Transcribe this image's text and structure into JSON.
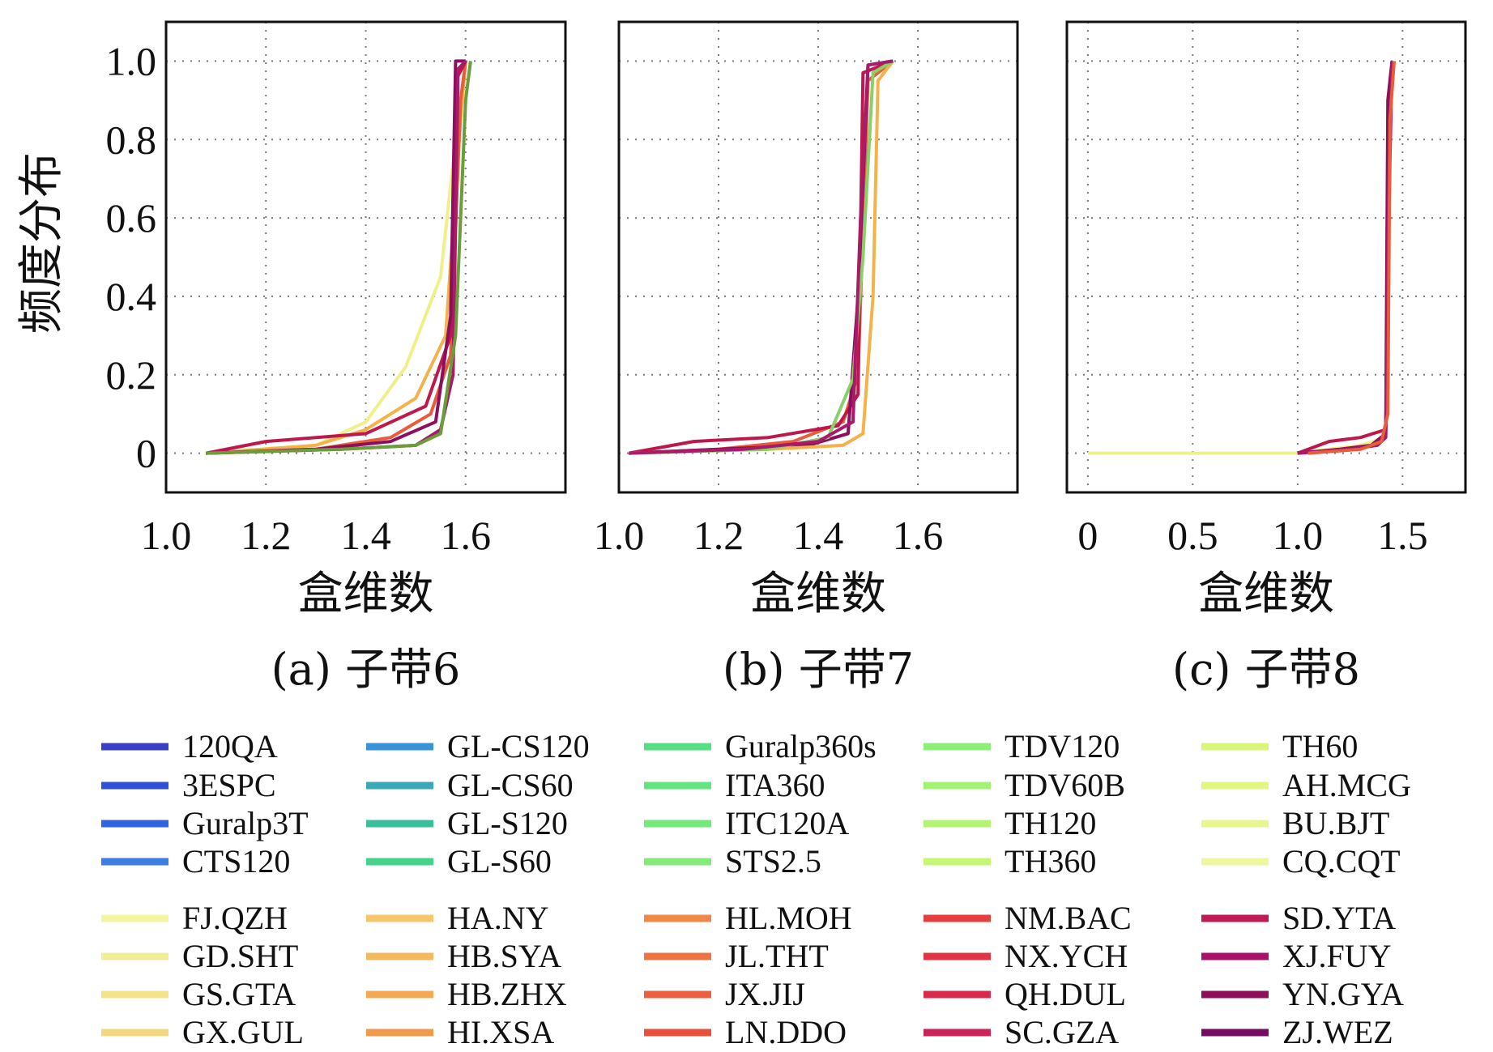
{
  "chart_data": [
    {
      "type": "line",
      "panel_caption": "(a) 子带6",
      "xlabel": "盒维数",
      "ylabel": "频度分布",
      "xlim": [
        1.0,
        1.8
      ],
      "ylim": [
        -0.1,
        1.1
      ],
      "xticks": [
        1.0,
        1.2,
        1.4,
        1.6
      ],
      "xtick_labels": [
        "1.0",
        "1.2",
        "1.4",
        "1.6"
      ],
      "yticks": [
        0,
        0.2,
        0.4,
        0.6,
        0.8,
        1.0
      ],
      "ytick_labels": [
        "0",
        "0.2",
        "0.4",
        "0.6",
        "0.8",
        "1.0"
      ],
      "grid": true,
      "series_note": "40 cumulative frequency curves (one per instrument/station, see legend)",
      "representative_curves": [
        {
          "color": "#f0f08a",
          "x": [
            1.08,
            1.3,
            1.4,
            1.48,
            1.55,
            1.58,
            1.6
          ],
          "y": [
            0,
            0.02,
            0.08,
            0.22,
            0.45,
            0.8,
            1.0
          ]
        },
        {
          "color": "#f4b24a",
          "x": [
            1.08,
            1.3,
            1.4,
            1.5,
            1.56,
            1.59,
            1.6
          ],
          "y": [
            0,
            0.02,
            0.06,
            0.14,
            0.3,
            0.85,
            1.0
          ]
        },
        {
          "color": "#e85c3a",
          "x": [
            1.08,
            1.3,
            1.45,
            1.53,
            1.57,
            1.59,
            1.6
          ],
          "y": [
            0,
            0.01,
            0.04,
            0.1,
            0.25,
            0.9,
            1.0
          ]
        },
        {
          "color": "#c0174b",
          "x": [
            1.08,
            1.2,
            1.4,
            1.52,
            1.57,
            1.58,
            1.6
          ],
          "y": [
            0,
            0.03,
            0.05,
            0.12,
            0.3,
            0.95,
            1.0
          ]
        },
        {
          "color": "#8a0f5e",
          "x": [
            1.08,
            1.3,
            1.45,
            1.54,
            1.57,
            1.58,
            1.6
          ],
          "y": [
            0,
            0.01,
            0.03,
            0.08,
            0.35,
            1.0,
            1.0
          ]
        },
        {
          "color": "#a81a6a",
          "x": [
            1.08,
            1.35,
            1.5,
            1.55,
            1.575,
            1.585,
            1.6
          ],
          "y": [
            0,
            0.01,
            0.02,
            0.06,
            0.2,
            0.98,
            1.0
          ]
        },
        {
          "color": "#6a9e3a",
          "x": [
            1.08,
            1.35,
            1.5,
            1.55,
            1.58,
            1.6,
            1.61
          ],
          "y": [
            0,
            0.01,
            0.02,
            0.05,
            0.3,
            0.9,
            1.0
          ]
        }
      ]
    },
    {
      "type": "line",
      "panel_caption": "(b) 子带7",
      "xlabel": "盒维数",
      "xlim": [
        1.0,
        1.8
      ],
      "ylim": [
        -0.1,
        1.1
      ],
      "xticks": [
        1.0,
        1.2,
        1.4,
        1.6
      ],
      "xtick_labels": [
        "1.0",
        "1.2",
        "1.4",
        "1.6"
      ],
      "grid": true,
      "series_note": "40 cumulative frequency curves (one per instrument/station, see legend)",
      "representative_curves": [
        {
          "color": "#e85c3a",
          "x": [
            1.02,
            1.2,
            1.35,
            1.45,
            1.48,
            1.5,
            1.55
          ],
          "y": [
            0,
            0.01,
            0.03,
            0.08,
            0.2,
            0.95,
            1.0
          ]
        },
        {
          "color": "#c0174b",
          "x": [
            1.02,
            1.15,
            1.3,
            1.44,
            1.48,
            1.49,
            1.55
          ],
          "y": [
            0,
            0.03,
            0.04,
            0.07,
            0.15,
            0.97,
            1.0
          ]
        },
        {
          "color": "#8a0f5e",
          "x": [
            1.02,
            1.2,
            1.38,
            1.46,
            1.48,
            1.5,
            1.55
          ],
          "y": [
            0,
            0.01,
            0.02,
            0.05,
            0.4,
            0.99,
            1.0
          ]
        },
        {
          "color": "#f4b24a",
          "x": [
            1.02,
            1.3,
            1.45,
            1.49,
            1.51,
            1.52,
            1.55
          ],
          "y": [
            0,
            0.01,
            0.02,
            0.05,
            0.4,
            0.95,
            1.0
          ]
        },
        {
          "color": "#8ad06a",
          "x": [
            1.02,
            1.3,
            1.42,
            1.47,
            1.49,
            1.51,
            1.55
          ],
          "y": [
            0,
            0.01,
            0.04,
            0.19,
            0.5,
            0.97,
            1.0
          ]
        },
        {
          "color": "#a81a6a",
          "x": [
            1.02,
            1.25,
            1.4,
            1.47,
            1.485,
            1.5,
            1.55
          ],
          "y": [
            0,
            0.01,
            0.03,
            0.08,
            0.6,
            0.99,
            1.0
          ]
        }
      ]
    },
    {
      "type": "line",
      "panel_caption": "(c) 子带8",
      "xlabel": "盒维数",
      "xlim": [
        -0.1,
        1.8
      ],
      "ylim": [
        -0.1,
        1.1
      ],
      "xticks": [
        0,
        0.5,
        1.0,
        1.5
      ],
      "xtick_labels": [
        "0",
        "0.5",
        "1.0",
        "1.5"
      ],
      "grid": true,
      "series_note": "40 cumulative frequency curves (one per instrument/station, see legend)",
      "representative_curves": [
        {
          "color": "#f0f08a",
          "x": [
            0,
            1.0,
            1.3,
            1.42,
            1.44,
            1.45
          ],
          "y": [
            0,
            0,
            0.02,
            0.04,
            0.8,
            1.0
          ]
        },
        {
          "color": "#c0174b",
          "x": [
            1.0,
            1.15,
            1.3,
            1.42,
            1.44,
            1.45
          ],
          "y": [
            0,
            0.03,
            0.04,
            0.06,
            0.75,
            1.0
          ]
        },
        {
          "color": "#8a0f5e",
          "x": [
            1.0,
            1.2,
            1.35,
            1.42,
            1.43,
            1.45
          ],
          "y": [
            0,
            0.01,
            0.02,
            0.05,
            0.9,
            1.0
          ]
        },
        {
          "color": "#a81a6a",
          "x": [
            1.0,
            1.25,
            1.38,
            1.42,
            1.435,
            1.45
          ],
          "y": [
            0,
            0.01,
            0.02,
            0.04,
            0.7,
            1.0
          ]
        },
        {
          "color": "#e85c3a",
          "x": [
            1.05,
            1.3,
            1.4,
            1.43,
            1.44,
            1.46
          ],
          "y": [
            0,
            0.01,
            0.03,
            0.1,
            0.85,
            1.0
          ]
        }
      ]
    }
  ],
  "legend": {
    "group1": [
      {
        "label": "120QA",
        "color": "#3a3fc9"
      },
      {
        "label": "3ESPC",
        "color": "#3150d6"
      },
      {
        "label": "Guralp3T",
        "color": "#2f63e0"
      },
      {
        "label": "CTS120",
        "color": "#3a7fe4"
      },
      {
        "label": "GL-CS120",
        "color": "#3a93d6"
      },
      {
        "label": "GL-CS60",
        "color": "#3aa8b8"
      },
      {
        "label": "GL-S120",
        "color": "#3bbf9b"
      },
      {
        "label": "GL-S60",
        "color": "#44d38a"
      },
      {
        "label": "Guralp360s",
        "color": "#55de82"
      },
      {
        "label": "ITA360",
        "color": "#63e47e"
      },
      {
        "label": "ITC120A",
        "color": "#73e87c"
      },
      {
        "label": "STS2.5",
        "color": "#82eb7a"
      },
      {
        "label": "TDV120",
        "color": "#8eef78"
      },
      {
        "label": "TDV60B",
        "color": "#a2f276"
      },
      {
        "label": "TH120",
        "color": "#b4f474"
      },
      {
        "label": "TH360",
        "color": "#c6f676"
      },
      {
        "label": "TH60",
        "color": "#d8f67a"
      },
      {
        "label": "AH.MCG",
        "color": "#e2f682"
      },
      {
        "label": "BU.BJT",
        "color": "#eaf790"
      },
      {
        "label": "CQ.CQT",
        "color": "#eff89e"
      }
    ],
    "group2": [
      {
        "label": "FJ.QZH",
        "color": "#f3f5a0"
      },
      {
        "label": "GD.SHT",
        "color": "#f2ee98"
      },
      {
        "label": "GS.GTA",
        "color": "#f3e48c"
      },
      {
        "label": "GX.GUL",
        "color": "#f4d880"
      },
      {
        "label": "HA.NY",
        "color": "#f5c66c"
      },
      {
        "label": "HB.SYA",
        "color": "#f4b85e"
      },
      {
        "label": "HB.ZHX",
        "color": "#f3a852"
      },
      {
        "label": "HI.XSA",
        "color": "#f29a4c"
      },
      {
        "label": "HL.MOH",
        "color": "#f08848"
      },
      {
        "label": "JL.THT",
        "color": "#ee7444"
      },
      {
        "label": "JX.JIJ",
        "color": "#ec6040"
      },
      {
        "label": "LN.DDO",
        "color": "#e8503c"
      },
      {
        "label": "NM.BAC",
        "color": "#e6403e"
      },
      {
        "label": "NX.YCH",
        "color": "#e03444"
      },
      {
        "label": "QH.DUL",
        "color": "#d82a4c"
      },
      {
        "label": "SC.GZA",
        "color": "#cc2258"
      },
      {
        "label": "SD.YTA",
        "color": "#c01a56"
      },
      {
        "label": "XJ.FUY",
        "color": "#a8126a"
      },
      {
        "label": "YN.GYA",
        "color": "#8e0e5a"
      },
      {
        "label": "ZJ.WEZ",
        "color": "#760b62"
      }
    ]
  }
}
